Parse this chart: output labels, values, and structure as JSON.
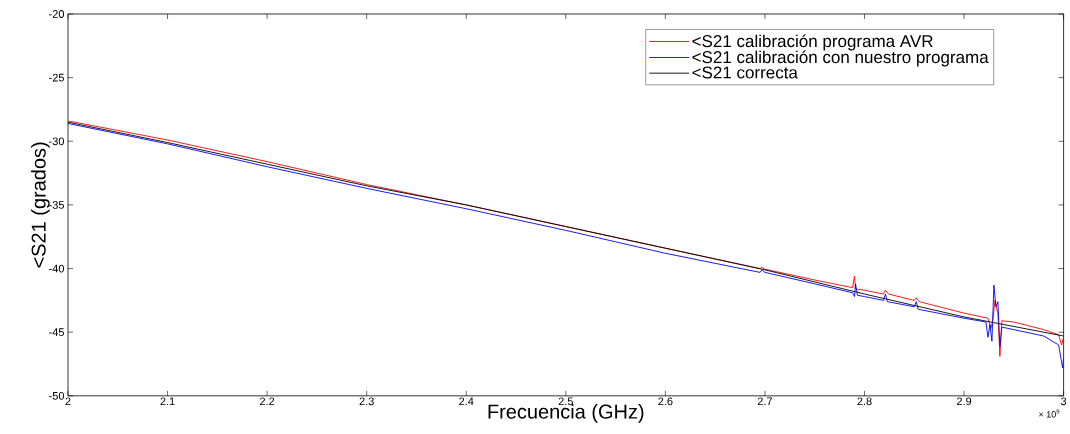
{
  "chart_data": {
    "type": "line",
    "xlabel": "Frecuencia (GHz)",
    "ylabel": "<S21 (grados)",
    "xlim": [
      2,
      3
    ],
    "ylim": [
      -50,
      -20
    ],
    "xticks": [
      2,
      2.1,
      2.2,
      2.3,
      2.4,
      2.5,
      2.6,
      2.7,
      2.8,
      2.9,
      3
    ],
    "yticks": [
      -50,
      -45,
      -40,
      -35,
      -30,
      -25,
      -20
    ],
    "annotations": [
      "× 10$^{9}$"
    ],
    "legend": "top right",
    "grid": false,
    "marker": "none",
    "line_style": "solid",
    "series": [
      {
        "name": "<S21 calibración programa AVR",
        "color": "#ff0000",
        "x": [
          2.0,
          2.1,
          2.2,
          2.3,
          2.4,
          2.5,
          2.6,
          2.695,
          2.697,
          2.7,
          2.75,
          2.788,
          2.79,
          2.791,
          2.8,
          2.819,
          2.821,
          2.824,
          2.85,
          2.852,
          2.855,
          2.9,
          2.924,
          2.927,
          2.929,
          2.931,
          2.934,
          2.936,
          2.938,
          2.95,
          2.98,
          2.995,
          2.998,
          3.0
        ],
        "values": [
          -28.4,
          -29.9,
          -31.6,
          -33.4,
          -35.0,
          -36.7,
          -38.4,
          -40.0,
          -39.9,
          -40.05,
          -40.9,
          -41.5,
          -40.6,
          -41.6,
          -41.7,
          -42.0,
          -41.7,
          -42.0,
          -42.5,
          -42.3,
          -42.6,
          -43.5,
          -43.9,
          -44.7,
          -44.0,
          -42.5,
          -43.5,
          -46.9,
          -44.1,
          -44.2,
          -44.8,
          -45.2,
          -46.0,
          -45.4
        ]
      },
      {
        "name": "<S21 calibración con nuestro programa",
        "color": "#0000ff",
        "x": [
          2.0,
          2.1,
          2.2,
          2.3,
          2.4,
          2.5,
          2.6,
          2.695,
          2.697,
          2.7,
          2.75,
          2.788,
          2.79,
          2.791,
          2.793,
          2.8,
          2.819,
          2.821,
          2.823,
          2.85,
          2.852,
          2.854,
          2.9,
          2.922,
          2.924,
          2.926,
          2.928,
          2.93,
          2.932,
          2.934,
          2.936,
          2.938,
          2.95,
          2.98,
          2.995,
          2.999,
          3.0
        ],
        "values": [
          -28.6,
          -30.2,
          -32.0,
          -33.7,
          -35.3,
          -37.0,
          -38.8,
          -40.3,
          -40.1,
          -40.3,
          -41.2,
          -41.9,
          -42.2,
          -41.2,
          -42.1,
          -42.2,
          -42.5,
          -42.0,
          -42.6,
          -43.0,
          -42.6,
          -43.2,
          -43.9,
          -44.2,
          -45.4,
          -44.4,
          -45.7,
          -41.3,
          -43.0,
          -42.6,
          -46.1,
          -44.6,
          -44.8,
          -45.3,
          -46.0,
          -47.8,
          -47.0
        ]
      },
      {
        "name": "<S21 correcta",
        "color": "#000000",
        "x": [
          2.0,
          2.1,
          2.2,
          2.3,
          2.4,
          2.5,
          2.6,
          2.7,
          2.8,
          2.9,
          3.0
        ],
        "values": [
          -28.5,
          -30.1,
          -31.8,
          -33.5,
          -35.0,
          -36.7,
          -38.4,
          -40.1,
          -42.0,
          -43.8,
          -45.3
        ]
      }
    ]
  }
}
